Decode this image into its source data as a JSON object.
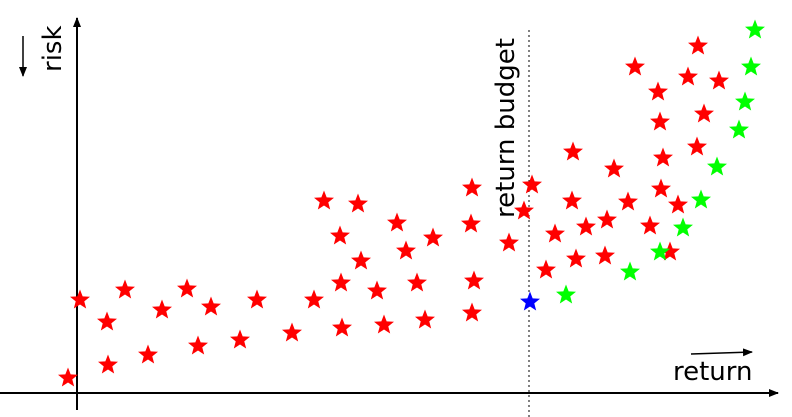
{
  "labels": {
    "risk": "risk",
    "return": "return",
    "budget": "return budget"
  },
  "colors": {
    "dominated": "#ff0000",
    "pareto": "#00ff00",
    "selected": "#0000ff",
    "axis": "#000000"
  },
  "points": {
    "red": [
      [
        68,
        378
      ],
      [
        108,
        365
      ],
      [
        148,
        355
      ],
      [
        198,
        346
      ],
      [
        240,
        340
      ],
      [
        292,
        333
      ],
      [
        342,
        328
      ],
      [
        384,
        325
      ],
      [
        425,
        320
      ],
      [
        472,
        313
      ],
      [
        80,
        300
      ],
      [
        107,
        322
      ],
      [
        125,
        290
      ],
      [
        162,
        310
      ],
      [
        187,
        289
      ],
      [
        211,
        307
      ],
      [
        257,
        300
      ],
      [
        314,
        300
      ],
      [
        341,
        283
      ],
      [
        377,
        291
      ],
      [
        417,
        283
      ],
      [
        474,
        281
      ],
      [
        324,
        201
      ],
      [
        358,
        204
      ],
      [
        340,
        236
      ],
      [
        361,
        261
      ],
      [
        397,
        223
      ],
      [
        406,
        251
      ],
      [
        433,
        238
      ],
      [
        472,
        188
      ],
      [
        471,
        224
      ],
      [
        509,
        243
      ],
      [
        532,
        185
      ],
      [
        524,
        211
      ],
      [
        546,
        270
      ],
      [
        555,
        234
      ],
      [
        572,
        201
      ],
      [
        573,
        152
      ],
      [
        576,
        259
      ],
      [
        586,
        227
      ],
      [
        605,
        256
      ],
      [
        607,
        220
      ],
      [
        614,
        169
      ],
      [
        628,
        202
      ],
      [
        650,
        226
      ],
      [
        661,
        189
      ],
      [
        663,
        158
      ],
      [
        660,
        122
      ],
      [
        658,
        92
      ],
      [
        635,
        67
      ],
      [
        698,
        46
      ],
      [
        688,
        77
      ],
      [
        719,
        81
      ],
      [
        704,
        114
      ],
      [
        697,
        147
      ],
      [
        678,
        205
      ],
      [
        670,
        252
      ]
    ],
    "green": [
      [
        566,
        295
      ],
      [
        630,
        272
      ],
      [
        660,
        252
      ],
      [
        683,
        228
      ],
      [
        701,
        200
      ],
      [
        717,
        167
      ],
      [
        739,
        130
      ],
      [
        745,
        102
      ],
      [
        751,
        67
      ],
      [
        755,
        30
      ]
    ],
    "blue": [
      [
        530,
        302
      ]
    ]
  }
}
